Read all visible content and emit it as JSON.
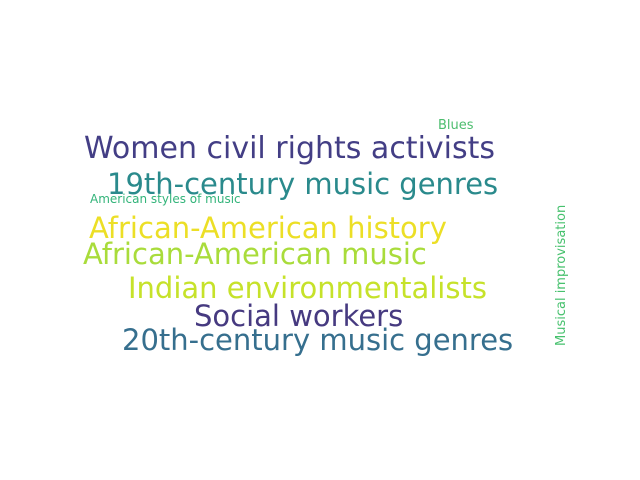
{
  "word_cloud": {
    "words": [
      {
        "text": "Women civil rights activists",
        "color": "#433e85"
      },
      {
        "text": "19th-century music genres",
        "color": "#2a8a8c"
      },
      {
        "text": "African-American history",
        "color": "#ecdf26"
      },
      {
        "text": "African-American music",
        "color": "#a9dc3b"
      },
      {
        "text": "Indian environmentalists",
        "color": "#c6e22a"
      },
      {
        "text": "Social workers",
        "color": "#463a80"
      },
      {
        "text": "20th-century music genres",
        "color": "#366f8e"
      },
      {
        "text": "American styles of music",
        "color": "#33b47a"
      },
      {
        "text": "Blues",
        "color": "#4cbd6e"
      },
      {
        "text": "Musical improvisation",
        "color": "#47c16e"
      }
    ]
  }
}
